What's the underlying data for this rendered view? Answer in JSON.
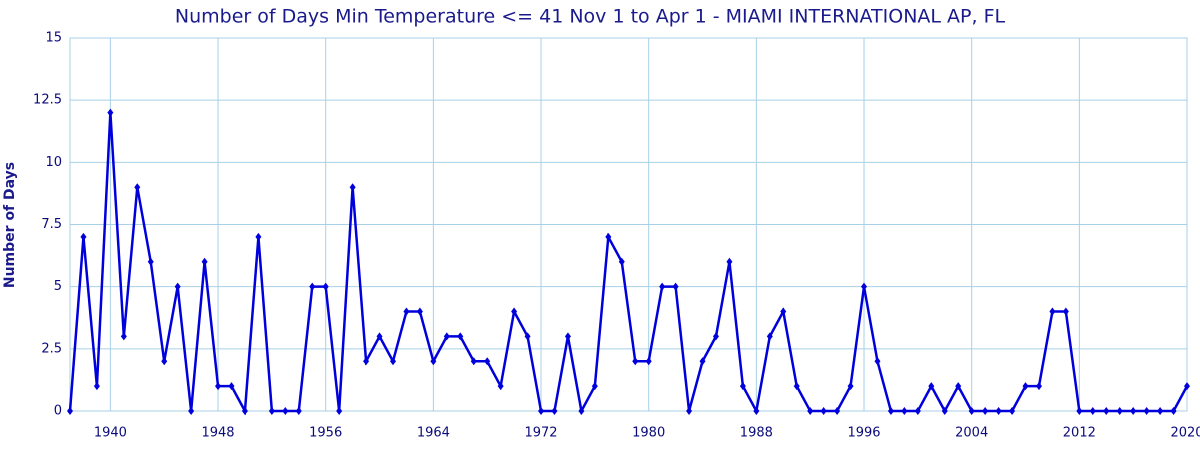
{
  "chart_data": {
    "type": "line",
    "title": "Number of Days Min Temperature <= 41 Nov 1 to Apr 1 - MIAMI INTERNATIONAL AP, FL",
    "y_label": "Number of Days",
    "x": [
      1937,
      1938,
      1939,
      1940,
      1941,
      1942,
      1943,
      1944,
      1945,
      1946,
      1947,
      1948,
      1949,
      1950,
      1951,
      1952,
      1953,
      1954,
      1955,
      1956,
      1957,
      1958,
      1959,
      1960,
      1961,
      1962,
      1963,
      1964,
      1965,
      1966,
      1967,
      1968,
      1969,
      1970,
      1971,
      1972,
      1973,
      1974,
      1975,
      1976,
      1977,
      1978,
      1979,
      1980,
      1981,
      1982,
      1983,
      1984,
      1985,
      1986,
      1987,
      1988,
      1989,
      1990,
      1991,
      1992,
      1993,
      1994,
      1995,
      1996,
      1997,
      1998,
      1999,
      2000,
      2001,
      2002,
      2003,
      2004,
      2005,
      2006,
      2007,
      2008,
      2009,
      2010,
      2011,
      2012,
      2013,
      2014,
      2015,
      2016,
      2017,
      2018,
      2019,
      2020
    ],
    "series": [
      {
        "name": "Number of Days",
        "color": "#0000dd",
        "values": [
          0,
          7,
          1,
          12,
          3,
          9,
          6,
          2,
          5,
          0,
          6,
          1,
          1,
          0,
          7,
          0,
          0,
          0,
          5,
          5,
          0,
          9,
          2,
          3,
          2,
          4,
          4,
          2,
          3,
          3,
          2,
          2,
          1,
          4,
          3,
          0,
          0,
          3,
          0,
          1,
          7,
          6,
          2,
          2,
          5,
          5,
          0,
          2,
          3,
          6,
          1,
          0,
          3,
          4,
          1,
          0,
          0,
          0,
          1,
          5,
          2,
          0,
          0,
          0,
          1,
          0,
          1,
          0,
          0,
          0,
          0,
          1,
          1,
          4,
          4,
          0,
          0,
          0,
          0,
          0,
          0,
          0,
          0,
          1
        ]
      }
    ],
    "xlim": [
      1937,
      2020
    ],
    "ylim": [
      0,
      15
    ],
    "xticks": [
      1940,
      1948,
      1956,
      1964,
      1972,
      1980,
      1988,
      1996,
      2004,
      2012,
      2020
    ],
    "yticks": [
      0,
      2.5,
      5,
      7.5,
      10,
      12.5,
      15
    ],
    "grid": true
  }
}
